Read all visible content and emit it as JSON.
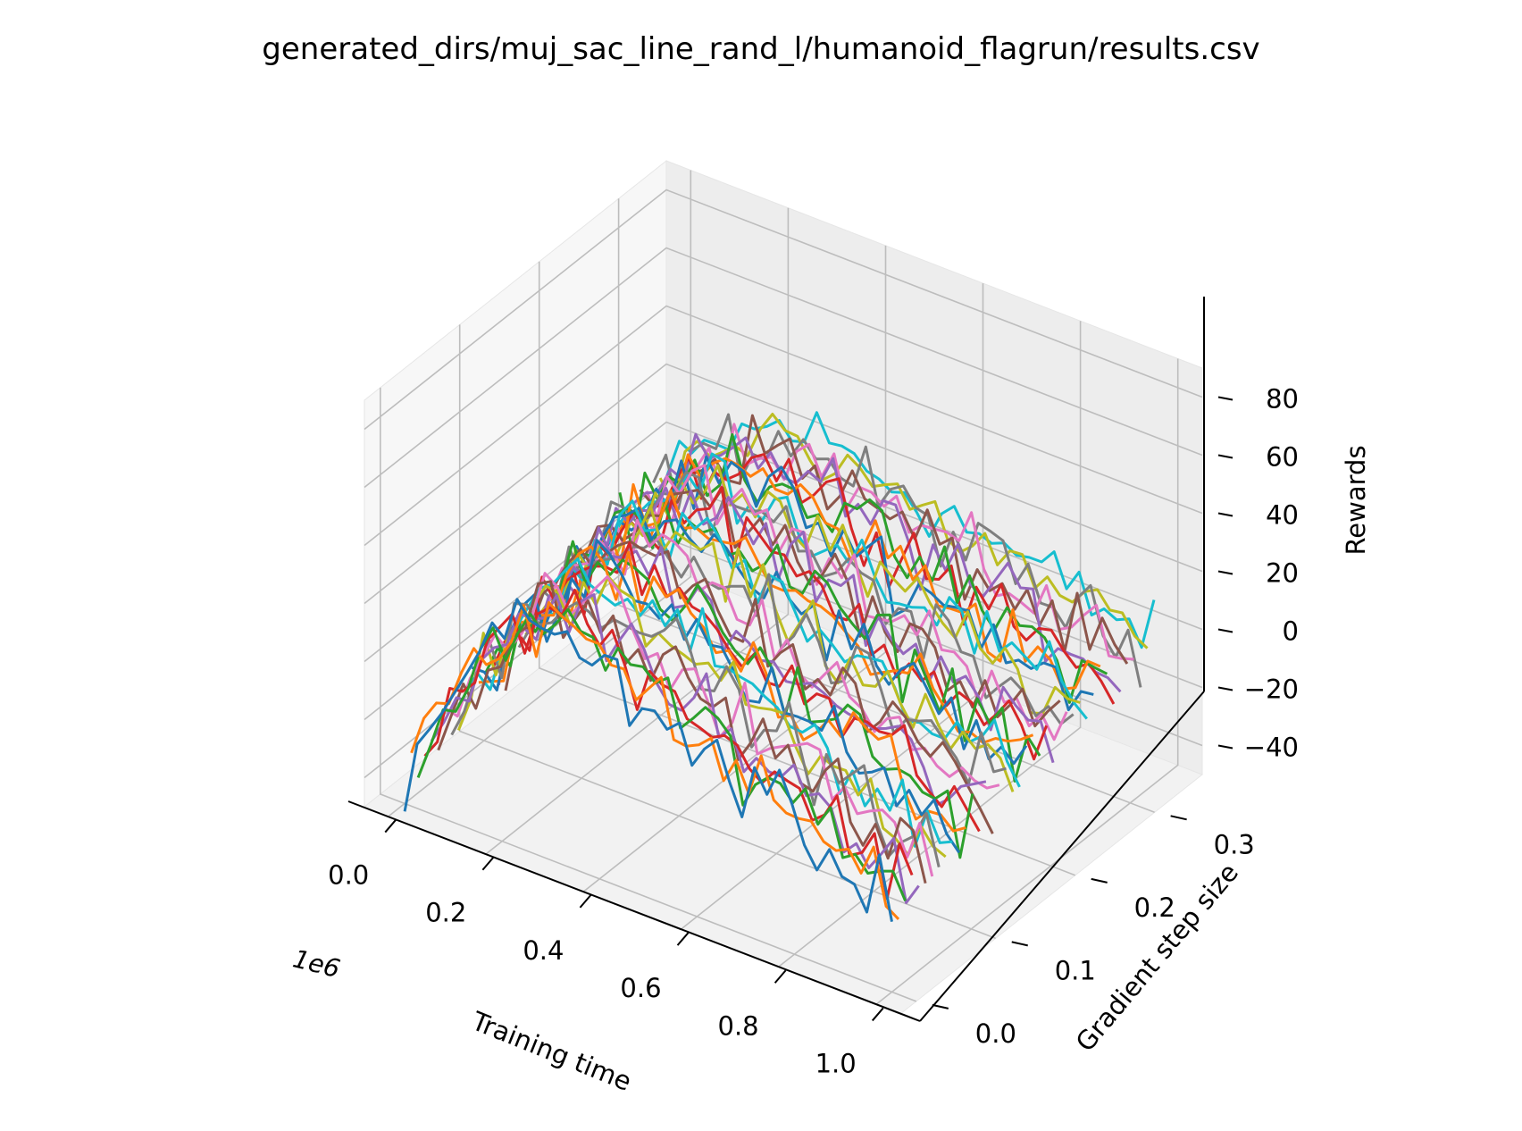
{
  "chart_data": {
    "type": "line",
    "projection": "3d",
    "title": "generated_dirs/muj_sac_line_rand_l/humanoid_flagrun/results.csv",
    "xlabel": "Training time",
    "ylabel": "Gradient step size",
    "zlabel": "Rewards",
    "x_offset_label": "1e6",
    "xlim": [
      -0.05,
      1.05
    ],
    "ylim": [
      -0.02,
      0.36
    ],
    "zlim": [
      -50,
      90
    ],
    "xticks": [
      "0.0",
      "0.2",
      "0.4",
      "0.6",
      "0.8",
      "1.0"
    ],
    "yticks": [
      "0.0",
      "0.1",
      "0.2",
      "0.3"
    ],
    "zticks": [
      "−40",
      "−20",
      "0",
      "20",
      "40",
      "60",
      "80"
    ],
    "grid": true,
    "legend": "none",
    "series_count": 40,
    "points_per_series": 40,
    "x_range": [
      0.0,
      1.0
    ],
    "y_range": [
      0.0,
      0.33
    ],
    "reward_profile": {
      "start_low_step": -40,
      "start_high_step": -10,
      "peak": 30,
      "end_low_step": -20,
      "end_high_step": 0,
      "peak_at_training_time": 0.3
    },
    "colors": [
      "#1f77b4",
      "#ff7f0e",
      "#2ca02c",
      "#d62728",
      "#9467bd",
      "#8c564b",
      "#e377c2",
      "#7f7f7f",
      "#bcbd22",
      "#17becf"
    ]
  }
}
